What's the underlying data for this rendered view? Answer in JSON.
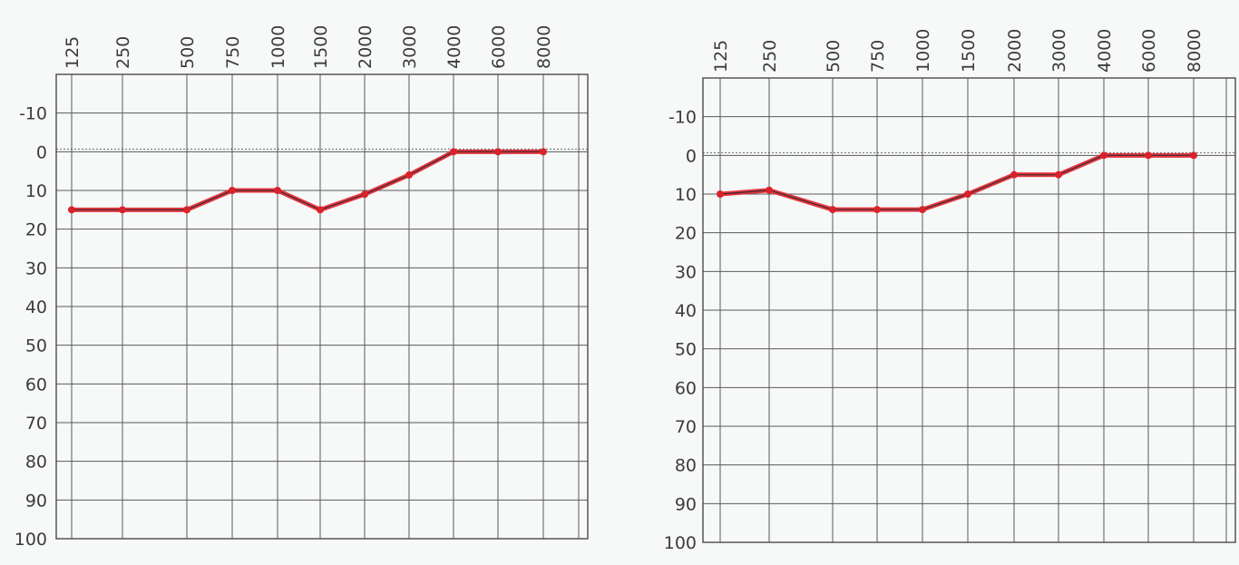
{
  "chart_data": [
    {
      "type": "line",
      "x_ticks": [
        "125",
        "250",
        "500",
        "750",
        "1000",
        "1500",
        "2000",
        "3000",
        "4000",
        "6000",
        "8000"
      ],
      "y_ticks": [
        "-10",
        "0",
        "10",
        "20",
        "30",
        "40",
        "50",
        "60",
        "70",
        "80",
        "90",
        "100"
      ],
      "ylim": [
        -20,
        100
      ],
      "y_inverted": true,
      "grid": true,
      "series": [
        {
          "color": "#e3262b",
          "x": [
            125,
            250,
            500,
            750,
            1000,
            1500,
            2000,
            3000,
            4000,
            6000,
            8000
          ],
          "y": [
            15,
            15,
            15,
            10,
            10,
            15,
            11,
            6,
            0,
            0,
            0
          ]
        }
      ]
    },
    {
      "type": "line",
      "x_ticks": [
        "125",
        "250",
        "500",
        "750",
        "1000",
        "1500",
        "2000",
        "3000",
        "4000",
        "6000",
        "8000"
      ],
      "y_ticks": [
        "-10",
        "0",
        "10",
        "20",
        "30",
        "40",
        "50",
        "60",
        "70",
        "80",
        "90",
        "100"
      ],
      "ylim": [
        -20,
        100
      ],
      "y_inverted": true,
      "grid": true,
      "series": [
        {
          "color": "#e3262b",
          "x": [
            125,
            250,
            500,
            750,
            1000,
            1500,
            2000,
            3000,
            4000,
            6000,
            8000
          ],
          "y": [
            10,
            9,
            14,
            14,
            14,
            10,
            5,
            5,
            0,
            0,
            0
          ]
        }
      ]
    }
  ]
}
